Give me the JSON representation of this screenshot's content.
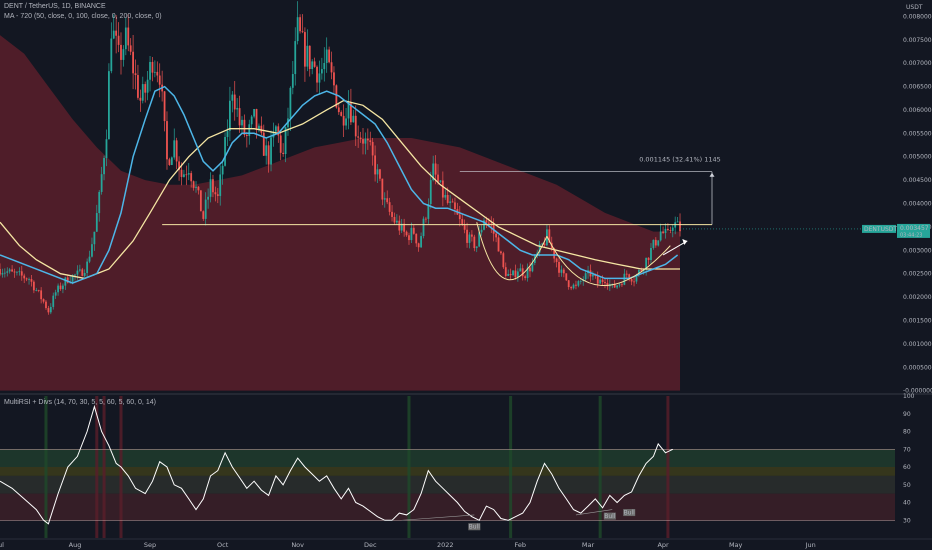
{
  "header": {
    "title": "DENT / TetherUS, 1D, BINANCE",
    "indicator": "MA - 720 (50, close, 0, 100, close, 0, 200, close, 0)",
    "oscillator": "MultiRSI + Divs (14, 70, 30, 5, 5, 60, 5, 60, 0, 14)"
  },
  "colors": {
    "background": "#131722",
    "bull_candle": "#26a69a",
    "bear_candle": "#ef5350",
    "ma50": "#4db6e8",
    "ma100": "#f5e6a3",
    "ma200_cloud": "#5a1e2a",
    "rsi_line": "#ffffff",
    "last_price_tag": "#26a69a"
  },
  "annotation": {
    "measure_label": "0.001145 (32.41%) 1145"
  },
  "last_price": {
    "symbol": "DENTUSDT",
    "value": "0.003457",
    "countdown": "03:44:23"
  },
  "div_labels": [
    "Bull",
    "Bull",
    "Bull"
  ],
  "chart_data": {
    "type": "candlestick",
    "currency_label": "USDT",
    "price_ticks": [
      "0.008000",
      "0.007500",
      "0.007000",
      "0.006500",
      "0.006000",
      "0.005500",
      "0.005000",
      "0.004500",
      "0.004000",
      "0.003500",
      "0.003000",
      "0.002500",
      "0.002000",
      "0.001500",
      "0.001000",
      "0.000500",
      "-0.000000"
    ],
    "price_tick_values": [
      0.008,
      0.0075,
      0.007,
      0.0065,
      0.006,
      0.0055,
      0.005,
      0.0045,
      0.004,
      0.0035,
      0.003,
      0.0025,
      0.002,
      0.0015,
      0.001,
      0.0005,
      0.0
    ],
    "ylim": [
      -5e-05,
      0.00835
    ],
    "x_labels": [
      "Jul",
      "Aug",
      "Sep",
      "Oct",
      "Nov",
      "Dec",
      "2022",
      "Feb",
      "Mar",
      "Apr",
      "May",
      "Jun"
    ],
    "x_label_day": [
      0,
      31,
      62,
      92,
      123,
      153,
      184,
      215,
      243,
      274,
      304,
      335
    ],
    "last_day": 281,
    "close_path": [
      [
        0,
        0.0026
      ],
      [
        5,
        0.0025
      ],
      [
        12,
        0.0024
      ],
      [
        18,
        0.0019
      ],
      [
        20,
        0.0017
      ],
      [
        23,
        0.0021
      ],
      [
        28,
        0.0024
      ],
      [
        33,
        0.0025
      ],
      [
        36,
        0.0027
      ],
      [
        39,
        0.0034
      ],
      [
        41,
        0.0041
      ],
      [
        44,
        0.0056
      ],
      [
        46,
        0.0078
      ],
      [
        49,
        0.0071
      ],
      [
        52,
        0.0075
      ],
      [
        55,
        0.0069
      ],
      [
        58,
        0.0062
      ],
      [
        60,
        0.0064
      ],
      [
        63,
        0.0071
      ],
      [
        66,
        0.0068
      ],
      [
        69,
        0.0049
      ],
      [
        72,
        0.0053
      ],
      [
        75,
        0.0046
      ],
      [
        78,
        0.0048
      ],
      [
        81,
        0.0043
      ],
      [
        84,
        0.0037
      ],
      [
        87,
        0.0044
      ],
      [
        90,
        0.0041
      ],
      [
        93,
        0.0052
      ],
      [
        96,
        0.0065
      ],
      [
        99,
        0.0057
      ],
      [
        102,
        0.0054
      ],
      [
        105,
        0.0058
      ],
      [
        108,
        0.0053
      ],
      [
        111,
        0.005
      ],
      [
        114,
        0.0056
      ],
      [
        117,
        0.005
      ],
      [
        120,
        0.0063
      ],
      [
        123,
        0.0077
      ],
      [
        126,
        0.0072
      ],
      [
        129,
        0.007
      ],
      [
        132,
        0.0068
      ],
      [
        135,
        0.007
      ],
      [
        138,
        0.0065
      ],
      [
        141,
        0.0058
      ],
      [
        144,
        0.0062
      ],
      [
        147,
        0.0056
      ],
      [
        150,
        0.0054
      ],
      [
        153,
        0.0051
      ],
      [
        156,
        0.0046
      ],
      [
        159,
        0.004
      ],
      [
        162,
        0.0037
      ],
      [
        165,
        0.0035
      ],
      [
        168,
        0.0033
      ],
      [
        171,
        0.0034
      ],
      [
        173,
        0.0031
      ],
      [
        176,
        0.0038
      ],
      [
        179,
        0.0047
      ],
      [
        182,
        0.0043
      ],
      [
        185,
        0.004
      ],
      [
        188,
        0.0038
      ],
      [
        191,
        0.0035
      ],
      [
        194,
        0.0032
      ],
      [
        197,
        0.0031
      ],
      [
        200,
        0.0037
      ],
      [
        203,
        0.0035
      ],
      [
        206,
        0.0031
      ],
      [
        208,
        0.0026
      ],
      [
        211,
        0.0024
      ],
      [
        214,
        0.0026
      ],
      [
        217,
        0.0025
      ],
      [
        220,
        0.0027
      ],
      [
        223,
        0.003
      ],
      [
        226,
        0.0033
      ],
      [
        229,
        0.0029
      ],
      [
        232,
        0.0025
      ],
      [
        235,
        0.0023
      ],
      [
        238,
        0.0022
      ],
      [
        241,
        0.0024
      ],
      [
        244,
        0.0025
      ],
      [
        247,
        0.0023
      ],
      [
        250,
        0.0024
      ],
      [
        253,
        0.0022
      ],
      [
        256,
        0.0023
      ],
      [
        259,
        0.0025
      ],
      [
        262,
        0.0024
      ],
      [
        265,
        0.0026
      ],
      [
        268,
        0.0029
      ],
      [
        271,
        0.0032
      ],
      [
        273,
        0.0034
      ],
      [
        276,
        0.0033
      ],
      [
        278,
        0.0036
      ],
      [
        281,
        0.003457
      ]
    ],
    "ma50_path": [
      [
        0,
        0.0029
      ],
      [
        10,
        0.0027
      ],
      [
        20,
        0.0025
      ],
      [
        30,
        0.0023
      ],
      [
        40,
        0.0025
      ],
      [
        45,
        0.003
      ],
      [
        50,
        0.0038
      ],
      [
        55,
        0.005
      ],
      [
        60,
        0.0058
      ],
      [
        64,
        0.0064
      ],
      [
        68,
        0.0065
      ],
      [
        72,
        0.0063
      ],
      [
        76,
        0.0059
      ],
      [
        80,
        0.0054
      ],
      [
        84,
        0.0049
      ],
      [
        88,
        0.0047
      ],
      [
        92,
        0.0049
      ],
      [
        96,
        0.0053
      ],
      [
        100,
        0.0055
      ],
      [
        105,
        0.0055
      ],
      [
        110,
        0.0054
      ],
      [
        115,
        0.0055
      ],
      [
        120,
        0.0058
      ],
      [
        125,
        0.0061
      ],
      [
        130,
        0.0063
      ],
      [
        135,
        0.0064
      ],
      [
        140,
        0.0063
      ],
      [
        145,
        0.0061
      ],
      [
        150,
        0.0059
      ],
      [
        155,
        0.0057
      ],
      [
        160,
        0.0053
      ],
      [
        165,
        0.0048
      ],
      [
        170,
        0.0043
      ],
      [
        175,
        0.004
      ],
      [
        180,
        0.0039
      ],
      [
        185,
        0.0039
      ],
      [
        190,
        0.0038
      ],
      [
        195,
        0.0037
      ],
      [
        200,
        0.0036
      ],
      [
        205,
        0.0034
      ],
      [
        210,
        0.0032
      ],
      [
        215,
        0.003
      ],
      [
        220,
        0.0029
      ],
      [
        225,
        0.0029
      ],
      [
        230,
        0.0029
      ],
      [
        235,
        0.0028
      ],
      [
        240,
        0.0026
      ],
      [
        245,
        0.0025
      ],
      [
        250,
        0.0024
      ],
      [
        255,
        0.0024
      ],
      [
        260,
        0.0024
      ],
      [
        265,
        0.0025
      ],
      [
        270,
        0.0026
      ],
      [
        275,
        0.0027
      ],
      [
        280,
        0.0029
      ]
    ],
    "ma100_path": [
      [
        0,
        0.0036
      ],
      [
        8,
        0.0031
      ],
      [
        15,
        0.0028
      ],
      [
        25,
        0.0025
      ],
      [
        35,
        0.0024
      ],
      [
        45,
        0.0026
      ],
      [
        55,
        0.0032
      ],
      [
        62,
        0.0038
      ],
      [
        70,
        0.0045
      ],
      [
        78,
        0.005
      ],
      [
        86,
        0.0054
      ],
      [
        95,
        0.0056
      ],
      [
        105,
        0.0056
      ],
      [
        115,
        0.0055
      ],
      [
        125,
        0.0057
      ],
      [
        135,
        0.006
      ],
      [
        142,
        0.0062
      ],
      [
        150,
        0.0061
      ],
      [
        158,
        0.0058
      ],
      [
        166,
        0.0053
      ],
      [
        174,
        0.0048
      ],
      [
        182,
        0.0044
      ],
      [
        190,
        0.0041
      ],
      [
        198,
        0.0038
      ],
      [
        206,
        0.0035
      ],
      [
        214,
        0.0033
      ],
      [
        222,
        0.0031
      ],
      [
        230,
        0.003
      ],
      [
        238,
        0.0029
      ],
      [
        246,
        0.0028
      ],
      [
        255,
        0.0027
      ],
      [
        265,
        0.0026
      ],
      [
        275,
        0.0026
      ],
      [
        281,
        0.0026
      ]
    ],
    "ma200_cloud_top": [
      [
        0,
        0.0076
      ],
      [
        10,
        0.0072
      ],
      [
        20,
        0.0065
      ],
      [
        30,
        0.0058
      ],
      [
        40,
        0.0052
      ],
      [
        50,
        0.0047
      ],
      [
        60,
        0.0045
      ],
      [
        70,
        0.0044
      ],
      [
        80,
        0.0044
      ],
      [
        90,
        0.0045
      ],
      [
        100,
        0.0046
      ],
      [
        110,
        0.0048
      ],
      [
        120,
        0.005
      ],
      [
        130,
        0.0052
      ],
      [
        140,
        0.0053
      ],
      [
        150,
        0.0054
      ],
      [
        160,
        0.0054
      ],
      [
        170,
        0.0054
      ],
      [
        180,
        0.0053
      ],
      [
        190,
        0.0052
      ],
      [
        200,
        0.005
      ],
      [
        210,
        0.0048
      ],
      [
        220,
        0.0046
      ],
      [
        230,
        0.0044
      ],
      [
        240,
        0.0041
      ],
      [
        250,
        0.0038
      ],
      [
        260,
        0.0036
      ],
      [
        270,
        0.0034
      ],
      [
        281,
        0.0034
      ]
    ],
    "ma200_cloud_bottom": 0.0,
    "resistance_level": 0.00355,
    "resistance_start_day": 67,
    "target_level": 0.00468,
    "rsi": {
      "ylim": [
        20,
        100
      ],
      "ticks": [
        100,
        90,
        80,
        70,
        60,
        50,
        40,
        30
      ],
      "overbought": 70,
      "oversold": 30,
      "path": [
        [
          0,
          52
        ],
        [
          5,
          48
        ],
        [
          10,
          42
        ],
        [
          15,
          36
        ],
        [
          18,
          30
        ],
        [
          20,
          28
        ],
        [
          24,
          45
        ],
        [
          28,
          60
        ],
        [
          32,
          66
        ],
        [
          36,
          80
        ],
        [
          39,
          94
        ],
        [
          42,
          80
        ],
        [
          45,
          72
        ],
        [
          48,
          62
        ],
        [
          50,
          60
        ],
        [
          53,
          55
        ],
        [
          56,
          48
        ],
        [
          60,
          45
        ],
        [
          63,
          52
        ],
        [
          66,
          63
        ],
        [
          69,
          60
        ],
        [
          72,
          50
        ],
        [
          75,
          48
        ],
        [
          78,
          42
        ],
        [
          81,
          36
        ],
        [
          84,
          42
        ],
        [
          87,
          55
        ],
        [
          90,
          58
        ],
        [
          93,
          68
        ],
        [
          96,
          60
        ],
        [
          99,
          54
        ],
        [
          102,
          48
        ],
        [
          105,
          52
        ],
        [
          108,
          47
        ],
        [
          111,
          44
        ],
        [
          114,
          55
        ],
        [
          117,
          50
        ],
        [
          120,
          58
        ],
        [
          123,
          65
        ],
        [
          126,
          60
        ],
        [
          129,
          56
        ],
        [
          132,
          52
        ],
        [
          135,
          55
        ],
        [
          138,
          48
        ],
        [
          141,
          42
        ],
        [
          144,
          48
        ],
        [
          147,
          40
        ],
        [
          150,
          38
        ],
        [
          153,
          35
        ],
        [
          156,
          32
        ],
        [
          159,
          30
        ],
        [
          162,
          30
        ],
        [
          165,
          34
        ],
        [
          168,
          33
        ],
        [
          171,
          36
        ],
        [
          174,
          45
        ],
        [
          177,
          58
        ],
        [
          180,
          52
        ],
        [
          183,
          48
        ],
        [
          186,
          44
        ],
        [
          189,
          40
        ],
        [
          192,
          35
        ],
        [
          195,
          32
        ],
        [
          198,
          30
        ],
        [
          201,
          38
        ],
        [
          204,
          36
        ],
        [
          207,
          31
        ],
        [
          210,
          30
        ],
        [
          213,
          32
        ],
        [
          216,
          34
        ],
        [
          219,
          40
        ],
        [
          222,
          52
        ],
        [
          225,
          62
        ],
        [
          228,
          56
        ],
        [
          231,
          48
        ],
        [
          234,
          42
        ],
        [
          237,
          36
        ],
        [
          240,
          34
        ],
        [
          243,
          38
        ],
        [
          246,
          42
        ],
        [
          249,
          37
        ],
        [
          252,
          44
        ],
        [
          255,
          40
        ],
        [
          258,
          44
        ],
        [
          261,
          46
        ],
        [
          264,
          55
        ],
        [
          267,
          62
        ],
        [
          270,
          66
        ],
        [
          272,
          73
        ],
        [
          275,
          68
        ],
        [
          278,
          70
        ]
      ]
    }
  }
}
